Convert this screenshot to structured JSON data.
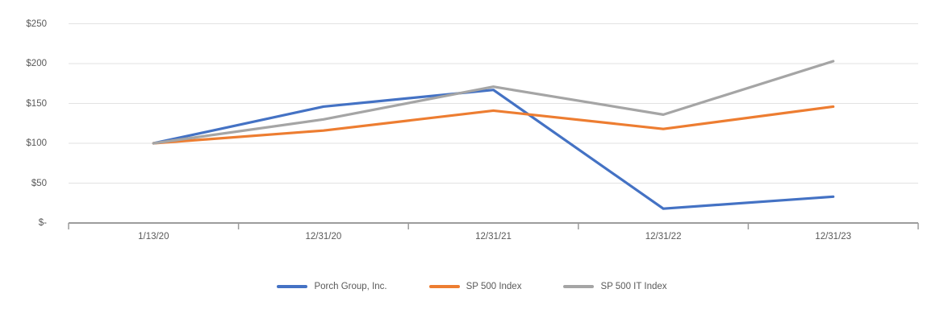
{
  "chart_data": {
    "type": "line",
    "title": "",
    "x_categories": [
      "1/13/20",
      "12/31/20",
      "12/31/21",
      "12/31/22",
      "12/31/23"
    ],
    "series": [
      {
        "name": "Porch Group, Inc.",
        "color": "#4472C4",
        "values": [
          100,
          146,
          167,
          18,
          33
        ]
      },
      {
        "name": "SP 500 Index",
        "color": "#ED7D31",
        "values": [
          100,
          116,
          141,
          118,
          146
        ]
      },
      {
        "name": "SP 500 IT Index",
        "color": "#A5A5A5",
        "values": [
          100,
          130,
          171,
          136,
          203
        ]
      }
    ],
    "y_axis": {
      "tick_labels": [
        "$-",
        "$50",
        "$100",
        "$150",
        "$200",
        "$250"
      ],
      "tick_values": [
        0,
        50,
        100,
        150,
        200,
        250
      ],
      "min": 0,
      "max": 250,
      "step": 50
    },
    "legend_position": "bottom",
    "grid": true
  },
  "colors": {
    "background": "#FFFFFF",
    "gridline": "#E2E2E2",
    "axis": "#9C9C9C",
    "label_text": "#595959"
  }
}
